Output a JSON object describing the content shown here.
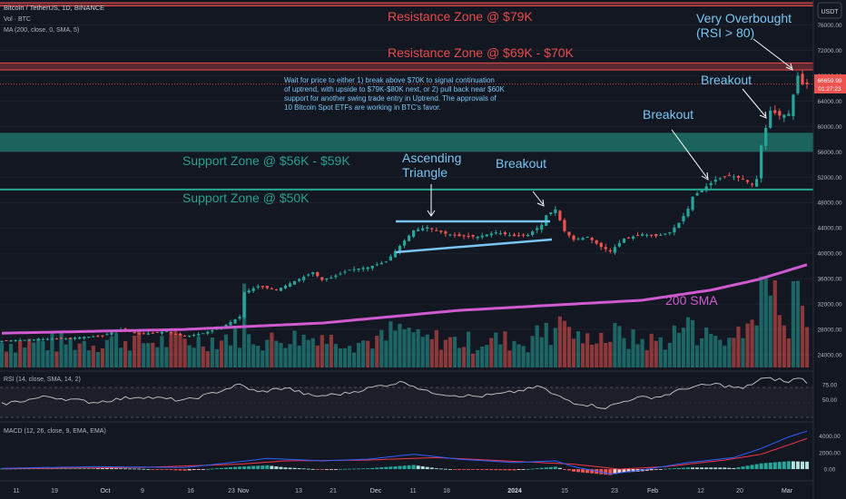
{
  "header": {
    "symbol": "Bitcoin / TetherUS, 1D, BINANCE",
    "volume": "Vol · BTC",
    "ma": "MA (200, close, 0, SMA, 5)",
    "currency": "USDT"
  },
  "annotations": {
    "resistance79": "Resistance Zone @ $79K",
    "resistance69": "Resistance Zone @ $69K - $70K",
    "support56": "Support Zone @ $56K - $59K",
    "support50": "Support Zone @ $50K",
    "overbought_1": "Very Overbought",
    "overbought_2": "(RSI > 80)",
    "breakout1": "Breakout",
    "breakout2": "Breakout",
    "breakout3": "Breakout",
    "triangle_1": "Ascending",
    "triangle_2": "Triangle",
    "sma": "200 SMA",
    "note": [
      "Wait for price to either 1) break above $70K to signal continuation",
      "of uptrend, with upside to $79K-$80K next, or 2) pull back near $60K",
      "support for another swing trade entry in Uptrend. The approvals of",
      "10 Bitcoin Spot ETFs are working in BTC's favor."
    ]
  },
  "price_labels": {
    "last": "66659.99",
    "countdown": "01:27:23"
  },
  "rsi": {
    "label": "RSI (14, close, SMA, 14, 2)"
  },
  "macd": {
    "label": "MACD (12, 26, close, 9, EMA, EMA)"
  },
  "colors": {
    "bg": "#131722",
    "up": "#26a69a",
    "down": "#ef5350",
    "resistance": "#e84b4b",
    "support": "#25a18e",
    "sma": "#d05ad0",
    "annotation_blue": "#79c6f2",
    "macd_line": "#2962ff",
    "signal_line": "#f23645"
  },
  "chart_data": [
    {
      "type": "candlestick",
      "title": "Bitcoin / TetherUS, 1D, BINANCE",
      "x_ticks": [
        "11",
        "19",
        "Oct",
        "9",
        "16",
        "23",
        "Nov",
        "13",
        "21",
        "Dec",
        "11",
        "18",
        "2024",
        "15",
        "23",
        "Feb",
        "12",
        "20",
        "Mar"
      ],
      "y_ticks": [
        "76000.00",
        "72000.00",
        "68000.00",
        "64000.00",
        "60000.00",
        "56000.00",
        "52000.00",
        "48000.00",
        "44000.00",
        "40000.00",
        "36000.00",
        "32000.00",
        "28000.00",
        "24000.00"
      ],
      "ylim": [
        22000,
        78500
      ],
      "close_path": [
        [
          0,
          26200
        ],
        [
          14,
          26600
        ],
        [
          22,
          27000
        ],
        [
          26,
          28000
        ],
        [
          30,
          27200
        ],
        [
          36,
          27700
        ],
        [
          40,
          26900
        ],
        [
          44,
          27400
        ],
        [
          48,
          28300
        ],
        [
          52,
          30000
        ],
        [
          53,
          33800
        ],
        [
          56,
          34800
        ],
        [
          60,
          34200
        ],
        [
          64,
          35600
        ],
        [
          68,
          37000
        ],
        [
          70,
          35800
        ],
        [
          72,
          36200
        ],
        [
          76,
          37400
        ],
        [
          80,
          37800
        ],
        [
          84,
          38700
        ],
        [
          88,
          42000
        ],
        [
          90,
          43600
        ],
        [
          93,
          44100
        ],
        [
          97,
          43100
        ],
        [
          100,
          42700
        ],
        [
          104,
          42600
        ],
        [
          108,
          43300
        ],
        [
          112,
          42700
        ],
        [
          115,
          42900
        ],
        [
          118,
          44500
        ],
        [
          119,
          46000
        ],
        [
          121,
          46900
        ],
        [
          123,
          43500
        ],
        [
          125,
          42100
        ],
        [
          128,
          42600
        ],
        [
          131,
          41000
        ],
        [
          133,
          40300
        ],
        [
          136,
          42300
        ],
        [
          140,
          43000
        ],
        [
          143,
          42700
        ],
        [
          146,
          43300
        ],
        [
          148,
          44800
        ],
        [
          150,
          47000
        ],
        [
          151,
          48900
        ],
        [
          153,
          50000
        ],
        [
          156,
          51600
        ],
        [
          159,
          52300
        ],
        [
          162,
          51700
        ],
        [
          164,
          50800
        ],
        [
          165,
          51700
        ],
        [
          166,
          57000
        ],
        [
          168,
          62500
        ],
        [
          170,
          61700
        ],
        [
          172,
          62000
        ],
        [
          174,
          68000
        ],
        [
          175,
          66660
        ]
      ],
      "resistance_zones": [
        {
          "low": 79000,
          "high": 79500
        },
        {
          "low": 68900,
          "high": 70000
        }
      ],
      "support_zones": [
        {
          "low": 56000,
          "high": 59000
        },
        {
          "low": 49900,
          "high": 50200
        }
      ],
      "sma200_path": [
        [
          0,
          27400
        ],
        [
          40,
          28000
        ],
        [
          70,
          29000
        ],
        [
          100,
          31000
        ],
        [
          120,
          31800
        ],
        [
          140,
          32600
        ],
        [
          155,
          34200
        ],
        [
          165,
          35800
        ],
        [
          176,
          38200
        ]
      ],
      "last_price": 66659.99
    },
    {
      "type": "line",
      "title": "RSI (14, close, SMA, 14, 2)",
      "y_ticks": [
        "75.00",
        "50.00"
      ],
      "ylim": [
        15,
        95
      ],
      "bands": [
        30,
        70
      ],
      "values_path": [
        [
          0,
          42
        ],
        [
          10,
          55
        ],
        [
          20,
          45
        ],
        [
          30,
          55
        ],
        [
          40,
          48
        ],
        [
          45,
          58
        ],
        [
          52,
          75
        ],
        [
          56,
          62
        ],
        [
          62,
          70
        ],
        [
          68,
          55
        ],
        [
          75,
          60
        ],
        [
          82,
          72
        ],
        [
          88,
          80
        ],
        [
          93,
          63
        ],
        [
          98,
          58
        ],
        [
          104,
          55
        ],
        [
          110,
          60
        ],
        [
          118,
          72
        ],
        [
          120,
          60
        ],
        [
          125,
          45
        ],
        [
          132,
          36
        ],
        [
          138,
          52
        ],
        [
          144,
          55
        ],
        [
          150,
          70
        ],
        [
          156,
          76
        ],
        [
          162,
          68
        ],
        [
          166,
          85
        ],
        [
          170,
          84
        ],
        [
          172,
          78
        ],
        [
          174,
          88
        ],
        [
          176,
          80
        ]
      ]
    },
    {
      "type": "line",
      "title": "MACD (12, 26, close, 9, EMA, EMA)",
      "y_ticks": [
        "4000.00",
        "2000.00",
        "0.00"
      ],
      "ylim": [
        -1200,
        5500
      ],
      "macd_path": [
        [
          0,
          100
        ],
        [
          20,
          300
        ],
        [
          40,
          200
        ],
        [
          52,
          900
        ],
        [
          58,
          1300
        ],
        [
          70,
          1000
        ],
        [
          80,
          1200
        ],
        [
          90,
          1800
        ],
        [
          100,
          1200
        ],
        [
          112,
          800
        ],
        [
          121,
          1000
        ],
        [
          125,
          300
        ],
        [
          133,
          -600
        ],
        [
          140,
          -100
        ],
        [
          150,
          800
        ],
        [
          160,
          1400
        ],
        [
          166,
          2500
        ],
        [
          172,
          3900
        ],
        [
          176,
          4600
        ]
      ],
      "signal_path": [
        [
          0,
          50
        ],
        [
          30,
          200
        ],
        [
          52,
          600
        ],
        [
          62,
          1000
        ],
        [
          80,
          1100
        ],
        [
          95,
          1400
        ],
        [
          110,
          1000
        ],
        [
          125,
          600
        ],
        [
          135,
          0
        ],
        [
          145,
          300
        ],
        [
          158,
          1100
        ],
        [
          166,
          1800
        ],
        [
          176,
          3700
        ]
      ]
    }
  ]
}
